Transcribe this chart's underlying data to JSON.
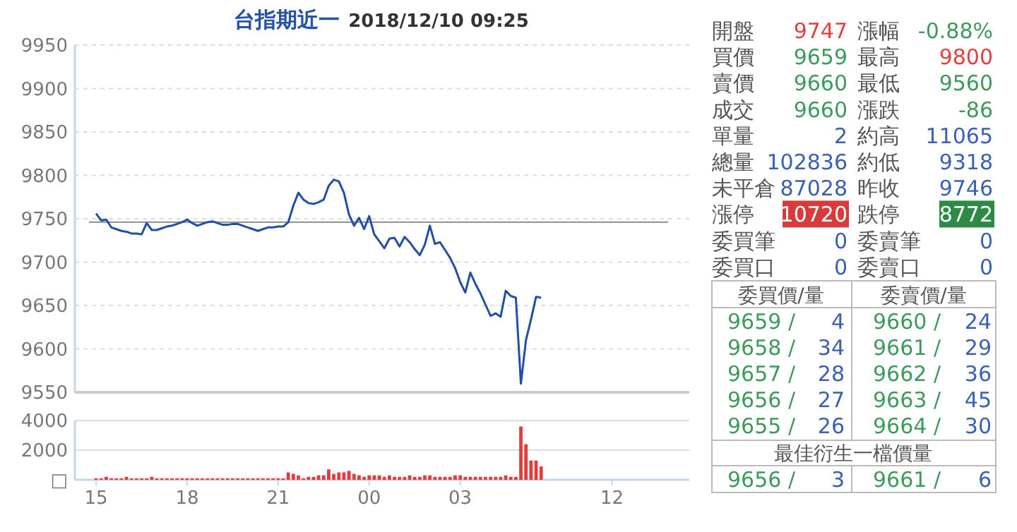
{
  "chart_data": [
    {
      "type": "line",
      "title": "台指期近一",
      "subtitle": "2018/12/10 09:25",
      "categories": [
        "15",
        null,
        null,
        null,
        null,
        null,
        null,
        null,
        null,
        null,
        null,
        null,
        null,
        null,
        null,
        null,
        null,
        null,
        "18",
        null,
        null,
        null,
        null,
        null,
        null,
        null,
        null,
        null,
        null,
        null,
        null,
        null,
        null,
        null,
        null,
        null,
        "21",
        null,
        null,
        null,
        null,
        null,
        null,
        null,
        null,
        null,
        null,
        null,
        null,
        null,
        null,
        null,
        null,
        null,
        "00",
        null,
        null,
        null,
        null,
        null,
        null,
        null,
        null,
        null,
        null,
        null,
        null,
        null,
        null,
        null,
        null,
        null,
        "03",
        null,
        null,
        null,
        null,
        null,
        null,
        null,
        null,
        null,
        null,
        null,
        null,
        null,
        null,
        null,
        null,
        null,
        null,
        null,
        null,
        null,
        null,
        null,
        null,
        null,
        null,
        null,
        null,
        null,
        "12",
        null,
        null,
        null,
        null,
        null,
        null,
        null,
        null,
        null,
        null,
        null,
        null,
        null,
        null,
        null
      ],
      "series": [
        {
          "color": "#1f4fa8",
          "values": [
            9756,
            9748,
            9749,
            9740,
            9738,
            9736,
            9735,
            9733,
            9733,
            9732,
            9745,
            9737,
            9737,
            9739,
            9741,
            9742,
            9744,
            9746,
            9749,
            9745,
            9742,
            9744,
            9746,
            9747,
            9745,
            9743,
            9743,
            9744,
            9744,
            9742,
            9740,
            9738,
            9736,
            9738,
            9740,
            9740,
            9741,
            9741,
            9746,
            9765,
            9780,
            9772,
            9768,
            9767,
            9769,
            9772,
            9788,
            9795,
            9793,
            9780,
            9755,
            9742,
            9751,
            9738,
            9753,
            9732,
            9724,
            9716,
            9727,
            9728,
            9718,
            9729,
            9723,
            9715,
            9708,
            9720,
            9742,
            9721,
            9723,
            9714,
            9705,
            9693,
            9677,
            9665,
            9688,
            9675,
            9664,
            9651,
            9638,
            9641,
            9637,
            9667,
            9661,
            9659,
            9560,
            9610,
            9634,
            9660,
            9659,
            null,
            null,
            null,
            null,
            null,
            null,
            null,
            null,
            null,
            null,
            null,
            null,
            null,
            null,
            null,
            null,
            null,
            null,
            null,
            null,
            null,
            null,
            null,
            null,
            null,
            null,
            null,
            null,
            null
          ]
        }
      ],
      "ylim": [
        9550,
        9950
      ],
      "yticks": [
        9550,
        9600,
        9650,
        9700,
        9750,
        9800,
        9850,
        9900,
        9950
      ],
      "grid": "y",
      "tick_labels": "y",
      "ref_lines": [
        {
          "axis": "y",
          "value": 9746,
          "color": "#999999"
        }
      ]
    },
    {
      "type": "bar",
      "color": "#e03c3c",
      "categories": [
        "15",
        null,
        null,
        null,
        null,
        null,
        null,
        null,
        null,
        null,
        null,
        null,
        null,
        null,
        null,
        null,
        null,
        null,
        "18",
        null,
        null,
        null,
        null,
        null,
        null,
        null,
        null,
        null,
        null,
        null,
        null,
        null,
        null,
        null,
        null,
        null,
        "21",
        null,
        null,
        null,
        null,
        null,
        null,
        null,
        null,
        null,
        null,
        null,
        null,
        null,
        null,
        null,
        null,
        null,
        "00",
        null,
        null,
        null,
        null,
        null,
        null,
        null,
        null,
        null,
        null,
        null,
        null,
        null,
        null,
        null,
        null,
        null,
        "03",
        null,
        null,
        null,
        null,
        null,
        null,
        null,
        null,
        null,
        null,
        null,
        null,
        null,
        null,
        null,
        null,
        null,
        null,
        null,
        null,
        null,
        null,
        null,
        null,
        null,
        null,
        null,
        null,
        null,
        "12",
        null,
        null,
        null,
        null,
        null,
        null,
        null,
        null,
        null,
        null,
        null,
        null,
        null,
        null,
        null
      ],
      "values": [
        100,
        100,
        200,
        100,
        100,
        100,
        200,
        100,
        100,
        100,
        100,
        200,
        100,
        100,
        100,
        100,
        100,
        100,
        100,
        100,
        100,
        100,
        100,
        100,
        100,
        100,
        100,
        100,
        100,
        100,
        100,
        100,
        100,
        100,
        100,
        100,
        100,
        100,
        500,
        400,
        300,
        100,
        200,
        200,
        300,
        300,
        700,
        400,
        500,
        500,
        600,
        400,
        300,
        200,
        300,
        300,
        300,
        200,
        300,
        200,
        200,
        200,
        300,
        200,
        200,
        300,
        300,
        200,
        200,
        200,
        200,
        300,
        300,
        200,
        200,
        200,
        200,
        200,
        200,
        200,
        200,
        300,
        200,
        200,
        3600,
        2400,
        1300,
        1300,
        900,
        null,
        null,
        null,
        null,
        null,
        null,
        null,
        null,
        null,
        null,
        null,
        null,
        null,
        null,
        null,
        null,
        null,
        null,
        null,
        null,
        null,
        null,
        null,
        null,
        null,
        null,
        null,
        null,
        null
      ],
      "ylim": [
        0,
        4000
      ],
      "yticks": [
        {
          "value": 0,
          "label": "□"
        },
        2000,
        4000
      ],
      "grid": "y"
    },
    {
      "type": "other",
      "annotations": [
        "開盤",
        "9747",
        "漲幅",
        "-0.88%",
        "買價",
        "9659",
        "最高",
        "9800",
        "賣價",
        "9660",
        "最低",
        "9560",
        "成交",
        "9660",
        "漲跌",
        "-86",
        "單量",
        "2",
        "約高",
        "11065",
        "總量",
        "102836",
        "約低",
        "9318",
        "未平倉",
        "87028",
        "昨收",
        "9746",
        "漲停",
        "10720",
        "跌停",
        "8772",
        "委買筆",
        "0",
        "委賣筆",
        "0",
        "委買口",
        "0",
        "委賣口",
        "0",
        "委買價/量",
        "委賣價/量",
        "9659 /",
        "4",
        "9660 /",
        "24",
        "9658 /",
        "34",
        "9661 /",
        "29",
        "9657 /",
        "28",
        "9662 /",
        "36",
        "9656 /",
        "27",
        "9663 /",
        "45",
        "9655 /",
        "26",
        "9664 /",
        "30",
        "最佳衍生一檔價量",
        "9656 /",
        "3",
        "9661 /",
        "6"
      ]
    }
  ]
}
